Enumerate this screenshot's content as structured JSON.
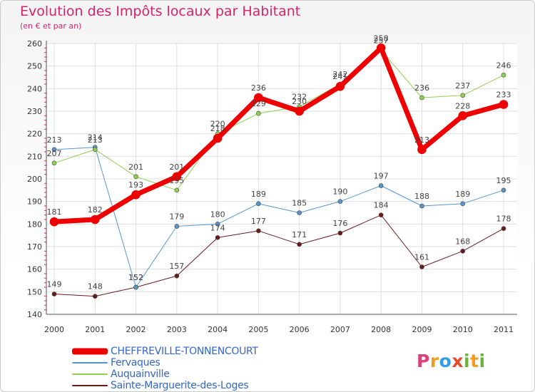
{
  "header": {
    "title": "Evolution des Impôts locaux par Habitant",
    "subtitle": "(en € et par an)"
  },
  "logo": {
    "letters": [
      "P",
      "r",
      "o",
      "x",
      "i",
      "t",
      "i"
    ],
    "colors": [
      "#e0407a",
      "#f39c1f",
      "#2e9ee6",
      "#e64b2e",
      "#6ab33c",
      "#f39c1f",
      "#6ab33c"
    ]
  },
  "chart_data": {
    "type": "line",
    "x": [
      "2000",
      "2001",
      "2002",
      "2003",
      "2004",
      "2005",
      "2006",
      "2007",
      "2008",
      "2009",
      "2010",
      "2011"
    ],
    "ylim": [
      140,
      260
    ],
    "yticks": [
      140,
      150,
      160,
      170,
      180,
      190,
      200,
      210,
      220,
      230,
      240,
      250,
      260
    ],
    "grid": true,
    "legend_position": "bottom-left",
    "series": [
      {
        "name": "Sainte-Marguerite-des-Loges",
        "color": "#6b1a1a",
        "width": 1,
        "marker": 3,
        "values": [
          149,
          148,
          152,
          157,
          174,
          177,
          171,
          176,
          184,
          161,
          168,
          178
        ]
      },
      {
        "name": "Fervaques",
        "color": "#5596cf",
        "width": 1,
        "marker": 3,
        "values": [
          213,
          214,
          152,
          179,
          180,
          189,
          185,
          190,
          197,
          188,
          189,
          195
        ]
      },
      {
        "name": "Auquainville",
        "color": "#8fd14f",
        "width": 1,
        "marker": 3,
        "values": [
          207,
          213,
          201,
          195,
          220,
          229,
          232,
          242,
          257,
          236,
          237,
          246
        ]
      },
      {
        "name": "CHEFFREVILLE-TONNENCOURT",
        "color": "#ee0000",
        "width": 7,
        "marker": 6,
        "values": [
          181,
          182,
          193,
          201,
          218,
          236,
          230,
          241,
          258,
          213,
          228,
          233
        ]
      }
    ],
    "legend_order": [
      "CHEFFREVILLE-TONNENCOURT",
      "Fervaques",
      "Auquainville",
      "Sainte-Marguerite-des-Loges"
    ]
  }
}
